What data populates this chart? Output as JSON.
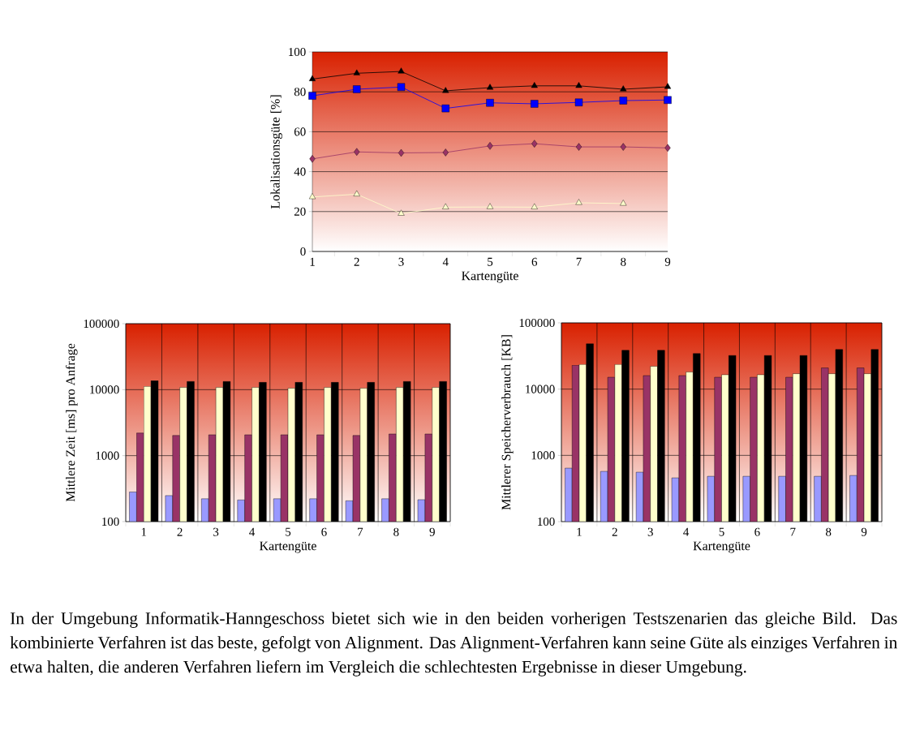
{
  "chart_data": [
    {
      "type": "line",
      "xlabel": "Kartengüte",
      "ylabel": "Lokalisationsgüte [%]",
      "categories": [
        "1",
        "2",
        "3",
        "4",
        "5",
        "6",
        "7",
        "8",
        "9"
      ],
      "ylim": [
        0,
        100
      ],
      "yticks": [
        0,
        20,
        40,
        60,
        80,
        100
      ],
      "grid": "y",
      "series": [
        {
          "color": "#000000",
          "marker": "triangle",
          "values": [
            86.4,
            89.3,
            90.2,
            80.5,
            82.1,
            83,
            83,
            81.3,
            82.5
          ]
        },
        {
          "color": "#0000ff",
          "marker": "square",
          "values": [
            78,
            81.3,
            82.4,
            71.7,
            74.5,
            74,
            74.7,
            75.6,
            75.9
          ]
        },
        {
          "color": "#993366",
          "marker": "diamond",
          "values": [
            46.4,
            49.9,
            49.4,
            49.6,
            52.9,
            54,
            52.4,
            52.4,
            51.9
          ]
        },
        {
          "color": "#ffffcc",
          "marker": "triangle",
          "values": [
            27.3,
            28.7,
            19,
            22.2,
            22.3,
            22.2,
            24.4,
            24,
            null
          ]
        }
      ]
    },
    {
      "type": "bar",
      "xlabel": "Kartengüte",
      "ylabel": "Mittlere Zeit [ms] pro Anfrage",
      "categories": [
        "1",
        "2",
        "3",
        "4",
        "5",
        "6",
        "7",
        "8",
        "9"
      ],
      "log": "y",
      "ylim": [
        100,
        100000
      ],
      "yticks": [
        100,
        1000,
        10000,
        100000
      ],
      "grid": true,
      "series": [
        {
          "color": "#9999ff",
          "values": [
            281,
            248,
            222,
            213,
            222,
            222,
            207,
            222,
            215
          ]
        },
        {
          "color": "#993366",
          "values": [
            2200,
            2020,
            2070,
            2070,
            2070,
            2070,
            2020,
            2130,
            2130
          ]
        },
        {
          "color": "#ffffcc",
          "values": [
            11200,
            10800,
            10800,
            10800,
            10500,
            10800,
            10500,
            10800,
            10800
          ]
        },
        {
          "color": "#000000",
          "values": [
            13700,
            13300,
            13300,
            12900,
            12900,
            12900,
            12900,
            13300,
            13300
          ]
        }
      ]
    },
    {
      "type": "bar",
      "xlabel": "Kartengüte",
      "ylabel": "Mittlerer Speicherverbrauch [KB]",
      "categories": [
        "1",
        "2",
        "3",
        "4",
        "5",
        "6",
        "7",
        "8",
        "9"
      ],
      "log": "y",
      "ylim": [
        100,
        100000
      ],
      "yticks": [
        100,
        1000,
        10000,
        100000
      ],
      "grid": true,
      "series": [
        {
          "color": "#9999ff",
          "values": [
            641,
            573,
            557,
            457,
            483,
            483,
            483,
            483,
            497
          ]
        },
        {
          "color": "#993366",
          "values": [
            22900,
            15100,
            16000,
            16000,
            15100,
            15100,
            15100,
            20900,
            20900
          ]
        },
        {
          "color": "#ffffcc",
          "values": [
            23600,
            23600,
            22100,
            18100,
            16500,
            16500,
            17100,
            17100,
            17100
          ]
        },
        {
          "color": "#000000",
          "values": [
            48300,
            38500,
            38500,
            34400,
            32200,
            32200,
            32200,
            39600,
            39600
          ]
        }
      ]
    },
    {
      "type": "other",
      "annotations": [
        "In der Umgebung Informatik-Hanngeschoss bietet sich wie in den beiden vorherigen Testszenarien das gleiche Bild. Das kombinierte Verfahren ist das beste, gefolgt von Alignment. Das Alignment-Verfahren kann seine Güte als einziges Verfahren in etwa halten, die anderen Verfahren liefern im Vergleich die schlechtesten Ergebnisse in dieser Umgebung."
      ]
    }
  ]
}
